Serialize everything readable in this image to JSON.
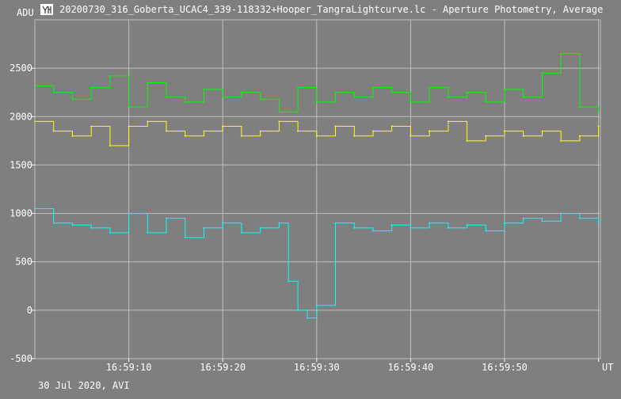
{
  "window": {
    "title": "20200730_316_Goberta_UCAC4_339-118332+Hooper_TangraLightcurve.lc - Aperture Photometry, Average",
    "icon": "tangra-app-icon"
  },
  "chart_data": {
    "type": "line",
    "ylabel": "ADU",
    "xlabel": "UT",
    "date_label": "30 Jul 2020, AVI",
    "ylim": [
      -500,
      3000
    ],
    "y_ticks": [
      -500,
      0,
      500,
      1000,
      1500,
      2000,
      2500
    ],
    "x_ticks": [
      "16:59:10",
      "16:59:20",
      "16:59:30",
      "16:59:40",
      "16:59:50",
      "17:00:00"
    ],
    "x_tick_labels": [
      "16:59:10",
      "16:59:20",
      "16:59:30",
      "16:59:40",
      "16:59:50",
      ""
    ],
    "xlim": [
      "16:59:00.0",
      "17:00:00.2"
    ],
    "grid": true,
    "colors": {
      "background": "#7f7f7f",
      "grid": "#bfbfbf",
      "green": "#00ff00",
      "yellow": "#ffff00",
      "cyan": "#00ffff"
    },
    "series": [
      {
        "color": "#00ff00",
        "x": [
          "16:59:00",
          "16:59:02",
          "16:59:04",
          "16:59:06",
          "16:59:08",
          "16:59:10",
          "16:59:12",
          "16:59:14",
          "16:59:16",
          "16:59:18",
          "16:59:20",
          "16:59:22",
          "16:59:24",
          "16:59:26",
          "16:59:28",
          "16:59:30",
          "16:59:32",
          "16:59:34",
          "16:59:36",
          "16:59:38",
          "16:59:40",
          "16:59:42",
          "16:59:44",
          "16:59:46",
          "16:59:48",
          "16:59:50",
          "16:59:52",
          "16:59:54",
          "16:59:56",
          "16:59:58",
          "17:00:00"
        ],
        "values": [
          2320,
          2250,
          2180,
          2300,
          2420,
          2100,
          2350,
          2200,
          2150,
          2280,
          2200,
          2250,
          2180,
          2050,
          2300,
          2150,
          2250,
          2200,
          2300,
          2250,
          2150,
          2300,
          2200,
          2250,
          2150,
          2280,
          2200,
          2450,
          2650,
          2100,
          2050
        ]
      },
      {
        "color": "#ffff00",
        "x": [
          "16:59:00",
          "16:59:02",
          "16:59:04",
          "16:59:06",
          "16:59:08",
          "16:59:10",
          "16:59:12",
          "16:59:14",
          "16:59:16",
          "16:59:18",
          "16:59:20",
          "16:59:22",
          "16:59:24",
          "16:59:26",
          "16:59:28",
          "16:59:30",
          "16:59:32",
          "16:59:34",
          "16:59:36",
          "16:59:38",
          "16:59:40",
          "16:59:42",
          "16:59:44",
          "16:59:46",
          "16:59:48",
          "16:59:50",
          "16:59:52",
          "16:59:54",
          "16:59:56",
          "16:59:58",
          "17:00:00"
        ],
        "values": [
          1950,
          1850,
          1800,
          1900,
          1700,
          1900,
          1950,
          1850,
          1800,
          1850,
          1900,
          1800,
          1850,
          1950,
          1850,
          1800,
          1900,
          1800,
          1850,
          1900,
          1800,
          1850,
          1950,
          1750,
          1800,
          1850,
          1800,
          1850,
          1750,
          1800,
          1900
        ]
      },
      {
        "color": "#00ffff",
        "x": [
          "16:59:00",
          "16:59:02",
          "16:59:04",
          "16:59:06",
          "16:59:08",
          "16:59:10",
          "16:59:12",
          "16:59:14",
          "16:59:16",
          "16:59:18",
          "16:59:20",
          "16:59:22",
          "16:59:24",
          "16:59:26",
          "16:59:27",
          "16:59:28",
          "16:59:29",
          "16:59:30",
          "16:59:32",
          "16:59:34",
          "16:59:36",
          "16:59:38",
          "16:59:40",
          "16:59:42",
          "16:59:44",
          "16:59:46",
          "16:59:48",
          "16:59:50",
          "16:59:52",
          "16:59:54",
          "16:59:56",
          "16:59:58",
          "17:00:00"
        ],
        "values": [
          1050,
          900,
          880,
          850,
          800,
          1000,
          800,
          950,
          750,
          850,
          900,
          800,
          850,
          900,
          300,
          0,
          -80,
          50,
          900,
          850,
          820,
          880,
          850,
          900,
          850,
          880,
          820,
          900,
          950,
          920,
          1000,
          950,
          900
        ]
      }
    ]
  }
}
